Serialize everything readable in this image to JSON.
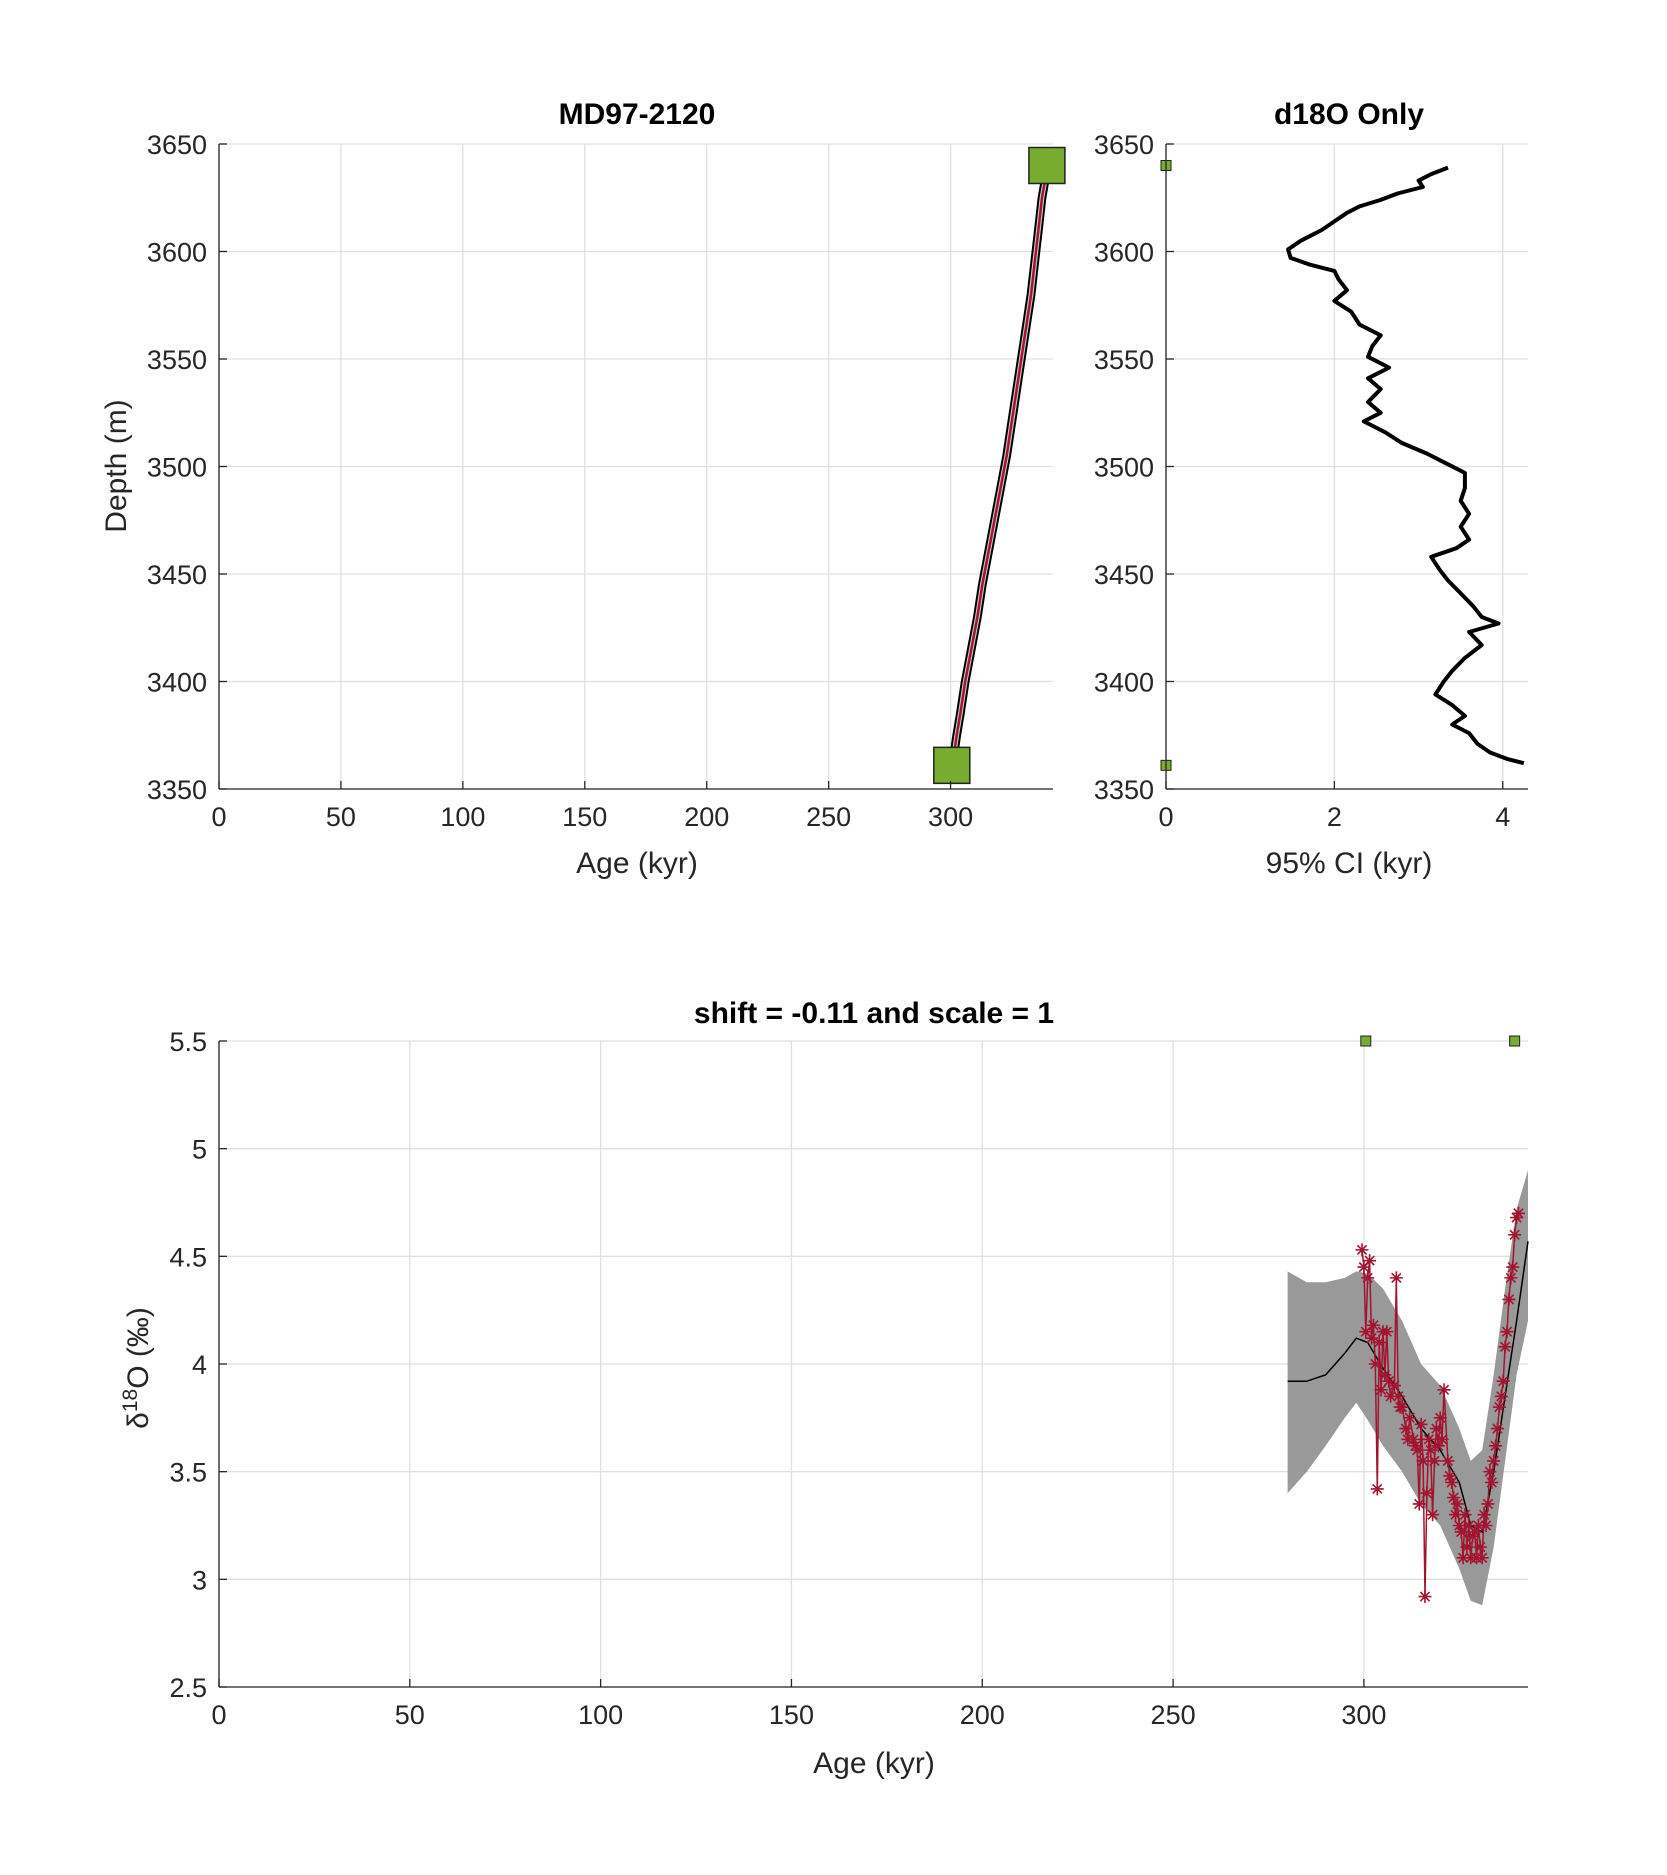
{
  "colors": {
    "marker_green": "#77ac30",
    "marker_red": "#a2142f",
    "band_gray": "#999999",
    "line_black": "#000000",
    "grid": "#e0e0e0"
  },
  "chart_data": [
    {
      "type": "line",
      "id": "age-depth",
      "title": "MD97-2120",
      "xlabel": "Age (kyr)",
      "ylabel": "Depth (m)",
      "xlim": [
        0,
        342
      ],
      "ylim": [
        3350,
        3650
      ],
      "y_reversed": true,
      "xticks": [
        0,
        50,
        100,
        150,
        200,
        250,
        300
      ],
      "yticks": [
        3350,
        3400,
        3450,
        3500,
        3550,
        3600,
        3650
      ],
      "grid": true,
      "tie_points": [
        {
          "age": 300.5,
          "depth": 3361
        },
        {
          "age": 339.5,
          "depth": 3640
        }
      ],
      "median_model": [
        [
          301,
          3363
        ],
        [
          302.5,
          3375
        ],
        [
          304,
          3385
        ],
        [
          306,
          3400
        ],
        [
          308.5,
          3415
        ],
        [
          311,
          3430
        ],
        [
          313,
          3445
        ],
        [
          315.5,
          3460
        ],
        [
          318,
          3475
        ],
        [
          320.5,
          3490
        ],
        [
          323,
          3505
        ],
        [
          325,
          3520
        ],
        [
          327,
          3535
        ],
        [
          329,
          3550
        ],
        [
          331,
          3565
        ],
        [
          333,
          3580
        ],
        [
          334.5,
          3595
        ],
        [
          336,
          3610
        ],
        [
          337.5,
          3625
        ],
        [
          339.5,
          3638
        ]
      ],
      "ci_halfwidth_kyr": 1.5
    },
    {
      "type": "line",
      "id": "ci-profile",
      "title": "d18O Only",
      "xlabel": "95% CI (kyr)",
      "ylabel": "",
      "xlim": [
        0,
        4.3
      ],
      "ylim": [
        3350,
        3650
      ],
      "y_reversed": true,
      "xticks": [
        0,
        2,
        4
      ],
      "yticks": [
        3350,
        3400,
        3450,
        3500,
        3550,
        3600,
        3650
      ],
      "grid": true,
      "tie_points": [
        {
          "ci": 0,
          "depth": 3361
        },
        {
          "ci": 0,
          "depth": 3640
        }
      ],
      "series": [
        {
          "points": [
            [
              3.35,
              3639
            ],
            [
              3.15,
              3636
            ],
            [
              3.0,
              3633
            ],
            [
              3.05,
              3630
            ],
            [
              2.75,
              3627
            ],
            [
              2.55,
              3624
            ],
            [
              2.3,
              3621
            ],
            [
              2.15,
              3618
            ],
            [
              2.0,
              3614
            ],
            [
              1.85,
              3610
            ],
            [
              1.6,
              3605
            ],
            [
              1.45,
              3601
            ],
            [
              1.48,
              3597
            ],
            [
              1.7,
              3594
            ],
            [
              2.0,
              3591
            ],
            [
              2.05,
              3587
            ],
            [
              2.15,
              3582
            ],
            [
              2.0,
              3577
            ],
            [
              2.2,
              3572
            ],
            [
              2.3,
              3566
            ],
            [
              2.55,
              3561
            ],
            [
              2.45,
              3556
            ],
            [
              2.4,
              3551
            ],
            [
              2.65,
              3546
            ],
            [
              2.4,
              3541
            ],
            [
              2.55,
              3536
            ],
            [
              2.4,
              3530
            ],
            [
              2.55,
              3525
            ],
            [
              2.35,
              3521
            ],
            [
              2.6,
              3516
            ],
            [
              2.8,
              3511
            ],
            [
              3.1,
              3506
            ],
            [
              3.3,
              3502
            ],
            [
              3.55,
              3497
            ],
            [
              3.55,
              3490
            ],
            [
              3.5,
              3484
            ],
            [
              3.6,
              3478
            ],
            [
              3.5,
              3472
            ],
            [
              3.6,
              3466
            ],
            [
              3.45,
              3462
            ],
            [
              3.15,
              3458
            ],
            [
              3.25,
              3452
            ],
            [
              3.35,
              3447
            ],
            [
              3.5,
              3441
            ],
            [
              3.65,
              3435
            ],
            [
              3.75,
              3430
            ],
            [
              3.95,
              3427
            ],
            [
              3.6,
              3423
            ],
            [
              3.75,
              3417
            ],
            [
              3.55,
              3411
            ],
            [
              3.4,
              3405
            ],
            [
              3.3,
              3400
            ],
            [
              3.2,
              3394
            ],
            [
              3.4,
              3389
            ],
            [
              3.55,
              3384
            ],
            [
              3.4,
              3380
            ],
            [
              3.6,
              3376
            ],
            [
              3.7,
              3371
            ],
            [
              3.85,
              3367
            ],
            [
              4.05,
              3364
            ],
            [
              4.25,
              3362
            ]
          ]
        }
      ]
    },
    {
      "type": "line",
      "id": "d18o-age",
      "title": "shift = -0.11 and scale = 1",
      "xlabel": "Age (kyr)",
      "ylabel": "δ18O (‰)",
      "xlim": [
        0,
        343
      ],
      "ylim": [
        2.5,
        5.5
      ],
      "y_reversed": true,
      "xticks": [
        0,
        50,
        100,
        150,
        200,
        250,
        300
      ],
      "yticks": [
        2.5,
        3,
        3.5,
        4,
        4.5,
        5,
        5.5
      ],
      "grid": true,
      "tie_points": [
        {
          "age": 300.5,
          "d18o": 5.5
        },
        {
          "age": 339.5,
          "d18o": 5.5
        }
      ],
      "stack_mean": [
        [
          280,
          3.92
        ],
        [
          285,
          3.92
        ],
        [
          290,
          3.95
        ],
        [
          295,
          4.05
        ],
        [
          298,
          4.12
        ],
        [
          301,
          4.1
        ],
        [
          305,
          3.98
        ],
        [
          310,
          3.85
        ],
        [
          315,
          3.7
        ],
        [
          320,
          3.6
        ],
        [
          325,
          3.45
        ],
        [
          328,
          3.25
        ],
        [
          331,
          3.22
        ],
        [
          334,
          3.5
        ],
        [
          337,
          3.85
        ],
        [
          340,
          4.2
        ],
        [
          343,
          4.57
        ]
      ],
      "stack_band": {
        "upper": [
          [
            280,
            3.4
          ],
          [
            285,
            3.5
          ],
          [
            290,
            3.62
          ],
          [
            295,
            3.75
          ],
          [
            298,
            3.82
          ],
          [
            301,
            3.74
          ],
          [
            305,
            3.62
          ],
          [
            310,
            3.5
          ],
          [
            315,
            3.35
          ],
          [
            320,
            3.25
          ],
          [
            325,
            3.05
          ],
          [
            328,
            2.9
          ],
          [
            331,
            2.88
          ],
          [
            334,
            3.15
          ],
          [
            337,
            3.55
          ],
          [
            340,
            3.95
          ],
          [
            343,
            4.2
          ]
        ],
        "lower": [
          [
            280,
            4.43
          ],
          [
            285,
            4.38
          ],
          [
            290,
            4.38
          ],
          [
            295,
            4.4
          ],
          [
            298,
            4.43
          ],
          [
            301,
            4.42
          ],
          [
            305,
            4.35
          ],
          [
            310,
            4.2
          ],
          [
            315,
            4.0
          ],
          [
            320,
            3.9
          ],
          [
            325,
            3.7
          ],
          [
            328,
            3.55
          ],
          [
            331,
            3.6
          ],
          [
            334,
            3.95
          ],
          [
            337,
            4.35
          ],
          [
            340,
            4.72
          ],
          [
            343,
            4.9
          ]
        ]
      },
      "samples": [
        [
          299.5,
          4.53
        ],
        [
          300,
          4.45
        ],
        [
          300.5,
          4.15
        ],
        [
          301,
          4.4
        ],
        [
          301.5,
          4.48
        ],
        [
          302,
          4.12
        ],
        [
          302.5,
          4.18
        ],
        [
          303,
          4.0
        ],
        [
          303.5,
          3.42
        ],
        [
          304,
          4.1
        ],
        [
          304.5,
          3.88
        ],
        [
          305,
          4.15
        ],
        [
          305.5,
          3.95
        ],
        [
          306,
          4.15
        ],
        [
          306.5,
          3.92
        ],
        [
          307,
          3.85
        ],
        [
          308,
          3.9
        ],
        [
          308.5,
          4.4
        ],
        [
          309,
          3.85
        ],
        [
          309.5,
          3.8
        ],
        [
          310,
          3.8
        ],
        [
          311,
          3.7
        ],
        [
          311.5,
          3.65
        ],
        [
          312,
          3.75
        ],
        [
          313,
          3.65
        ],
        [
          313.5,
          3.62
        ],
        [
          314,
          3.6
        ],
        [
          314.5,
          3.35
        ],
        [
          315,
          3.72
        ],
        [
          315.5,
          3.55
        ],
        [
          316,
          2.92
        ],
        [
          316.5,
          3.4
        ],
        [
          317,
          3.65
        ],
        [
          317.5,
          3.6
        ],
        [
          318,
          3.3
        ],
        [
          318.5,
          3.55
        ],
        [
          319,
          3.7
        ],
        [
          319.5,
          3.62
        ],
        [
          320,
          3.75
        ],
        [
          320.5,
          3.65
        ],
        [
          321,
          3.88
        ],
        [
          322,
          3.55
        ],
        [
          322.5,
          3.48
        ],
        [
          323,
          3.45
        ],
        [
          323.5,
          3.38
        ],
        [
          324,
          3.3
        ],
        [
          324.5,
          3.35
        ],
        [
          325,
          3.25
        ],
        [
          325.5,
          3.22
        ],
        [
          326,
          3.1
        ],
        [
          326.5,
          3.3
        ],
        [
          327,
          3.15
        ],
        [
          327.5,
          3.25
        ],
        [
          328,
          3.1
        ],
        [
          328.5,
          3.2
        ],
        [
          329,
          3.22
        ],
        [
          329.5,
          3.1
        ],
        [
          330,
          3.25
        ],
        [
          330.5,
          3.15
        ],
        [
          331,
          3.1
        ],
        [
          331.5,
          3.3
        ],
        [
          332,
          3.25
        ],
        [
          332.5,
          3.35
        ],
        [
          333,
          3.5
        ],
        [
          333.5,
          3.45
        ],
        [
          334,
          3.55
        ],
        [
          334.5,
          3.62
        ],
        [
          335,
          3.7
        ],
        [
          335.5,
          3.8
        ],
        [
          336,
          3.85
        ],
        [
          336.5,
          3.92
        ],
        [
          337,
          4.08
        ],
        [
          337.5,
          4.15
        ],
        [
          338,
          4.3
        ],
        [
          338.5,
          4.4
        ],
        [
          339,
          4.45
        ],
        [
          339.5,
          4.6
        ],
        [
          340,
          4.68
        ],
        [
          340.5,
          4.7
        ]
      ]
    }
  ]
}
